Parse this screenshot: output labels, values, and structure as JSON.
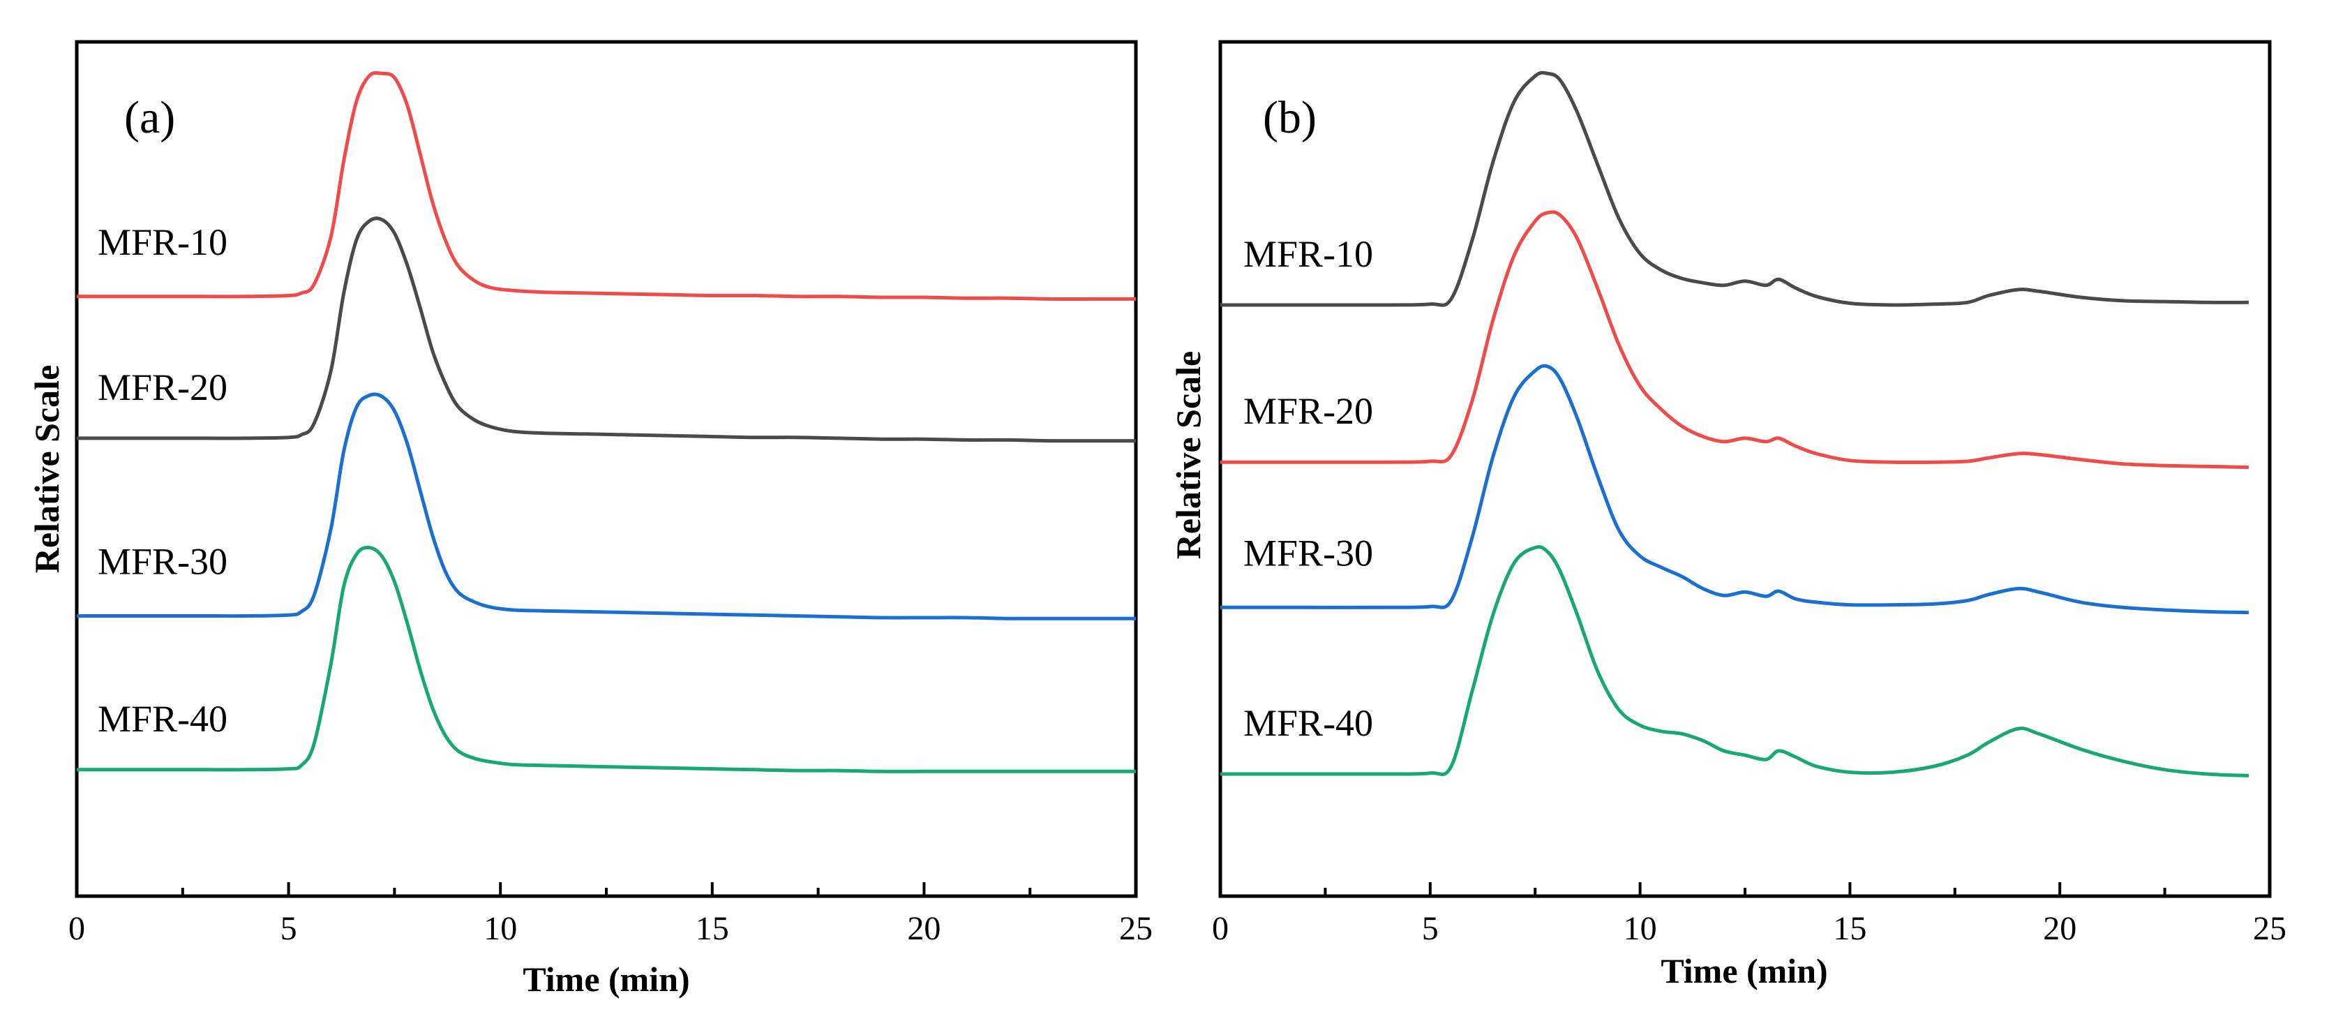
{
  "chart_data": [
    {
      "type": "line",
      "panel_label": "(a)",
      "xlabel": "Time (min)",
      "ylabel": "Relative Scale",
      "xlim": [
        0,
        25
      ],
      "ylim": [
        0,
        1
      ],
      "xticks": [
        0,
        5,
        10,
        15,
        20,
        25
      ],
      "x": [
        0,
        1,
        2,
        3,
        4,
        5,
        5.3,
        5.6,
        6.0,
        6.3,
        6.6,
        6.9,
        7.2,
        7.5,
        7.8,
        8.1,
        8.4,
        8.7,
        9.0,
        9.4,
        9.8,
        10.3,
        11,
        12,
        13,
        14,
        15,
        16,
        17,
        18,
        19,
        20,
        21,
        22,
        23,
        24,
        25
      ],
      "series": [
        {
          "name": "MFR-10",
          "color": "#ef4b4b",
          "values": [
            0.702,
            0.702,
            0.702,
            0.702,
            0.702,
            0.703,
            0.706,
            0.716,
            0.772,
            0.86,
            0.93,
            0.96,
            0.963,
            0.958,
            0.926,
            0.87,
            0.812,
            0.768,
            0.738,
            0.72,
            0.712,
            0.709,
            0.707,
            0.706,
            0.705,
            0.704,
            0.703,
            0.703,
            0.702,
            0.702,
            0.701,
            0.701,
            0.7,
            0.7,
            0.699,
            0.699,
            0.699
          ]
        },
        {
          "name": "MFR-20",
          "color": "#4a4a4a",
          "values": [
            0.536,
            0.536,
            0.536,
            0.536,
            0.536,
            0.537,
            0.54,
            0.553,
            0.615,
            0.705,
            0.768,
            0.79,
            0.792,
            0.776,
            0.739,
            0.69,
            0.638,
            0.6,
            0.573,
            0.557,
            0.549,
            0.544,
            0.542,
            0.541,
            0.54,
            0.539,
            0.538,
            0.537,
            0.537,
            0.536,
            0.535,
            0.535,
            0.534,
            0.534,
            0.533,
            0.533,
            0.533
          ]
        },
        {
          "name": "MFR-30",
          "color": "#1a6fd0",
          "values": [
            0.328,
            0.328,
            0.328,
            0.328,
            0.328,
            0.329,
            0.333,
            0.352,
            0.43,
            0.52,
            0.572,
            0.586,
            0.585,
            0.568,
            0.53,
            0.476,
            0.422,
            0.38,
            0.356,
            0.344,
            0.338,
            0.335,
            0.334,
            0.333,
            0.332,
            0.331,
            0.33,
            0.329,
            0.328,
            0.327,
            0.326,
            0.326,
            0.326,
            0.325,
            0.325,
            0.325,
            0.325
          ]
        },
        {
          "name": "MFR-40",
          "color": "#17a874",
          "values": [
            0.148,
            0.148,
            0.148,
            0.148,
            0.148,
            0.149,
            0.153,
            0.178,
            0.272,
            0.362,
            0.4,
            0.408,
            0.398,
            0.368,
            0.32,
            0.266,
            0.22,
            0.188,
            0.17,
            0.161,
            0.157,
            0.154,
            0.153,
            0.152,
            0.151,
            0.15,
            0.149,
            0.148,
            0.147,
            0.147,
            0.146,
            0.146,
            0.146,
            0.146,
            0.146,
            0.146,
            0.146
          ]
        }
      ]
    },
    {
      "type": "line",
      "panel_label": "(b)",
      "xlabel": "Time (min)",
      "ylabel": "Relative Scale",
      "xlim": [
        0,
        25
      ],
      "ylim": [
        0,
        1
      ],
      "xticks": [
        0,
        5,
        10,
        15,
        20,
        25
      ],
      "x": [
        0,
        2,
        4,
        5,
        5.5,
        6.0,
        6.5,
        7.0,
        7.5,
        7.8,
        8.1,
        8.5,
        9.0,
        9.5,
        10.0,
        10.5,
        11.0,
        11.5,
        12.0,
        12.5,
        13.0,
        13.3,
        13.7,
        14.2,
        15,
        16,
        17,
        17.8,
        18.3,
        19.0,
        19.5,
        20.5,
        21.5,
        22.5,
        23.5,
        24.5
      ],
      "series": [
        {
          "name": "MFR-10",
          "color": "#4a4a4a",
          "values": [
            0.692,
            0.692,
            0.692,
            0.693,
            0.699,
            0.768,
            0.86,
            0.93,
            0.96,
            0.963,
            0.955,
            0.918,
            0.855,
            0.793,
            0.752,
            0.733,
            0.723,
            0.718,
            0.715,
            0.72,
            0.715,
            0.722,
            0.712,
            0.702,
            0.694,
            0.692,
            0.693,
            0.695,
            0.703,
            0.71,
            0.708,
            0.701,
            0.697,
            0.696,
            0.695,
            0.695
          ]
        },
        {
          "name": "MFR-20",
          "color": "#ef4b4b",
          "values": [
            0.508,
            0.508,
            0.508,
            0.509,
            0.516,
            0.58,
            0.675,
            0.75,
            0.79,
            0.8,
            0.797,
            0.77,
            0.71,
            0.645,
            0.597,
            0.57,
            0.55,
            0.538,
            0.532,
            0.536,
            0.532,
            0.536,
            0.527,
            0.518,
            0.51,
            0.508,
            0.508,
            0.509,
            0.513,
            0.518,
            0.517,
            0.511,
            0.506,
            0.504,
            0.503,
            0.502
          ]
        },
        {
          "name": "MFR-30",
          "color": "#1a6fd0",
          "values": [
            0.338,
            0.338,
            0.338,
            0.339,
            0.346,
            0.42,
            0.515,
            0.585,
            0.615,
            0.62,
            0.605,
            0.56,
            0.49,
            0.428,
            0.398,
            0.385,
            0.374,
            0.36,
            0.352,
            0.356,
            0.351,
            0.357,
            0.348,
            0.344,
            0.341,
            0.341,
            0.342,
            0.346,
            0.353,
            0.36,
            0.356,
            0.344,
            0.338,
            0.335,
            0.333,
            0.332
          ]
        },
        {
          "name": "MFR-40",
          "color": "#17a874",
          "values": [
            0.143,
            0.143,
            0.143,
            0.144,
            0.152,
            0.24,
            0.33,
            0.39,
            0.408,
            0.403,
            0.38,
            0.33,
            0.262,
            0.218,
            0.2,
            0.193,
            0.19,
            0.182,
            0.17,
            0.165,
            0.16,
            0.17,
            0.163,
            0.152,
            0.145,
            0.145,
            0.152,
            0.165,
            0.18,
            0.196,
            0.19,
            0.172,
            0.158,
            0.148,
            0.143,
            0.141
          ]
        }
      ]
    }
  ]
}
